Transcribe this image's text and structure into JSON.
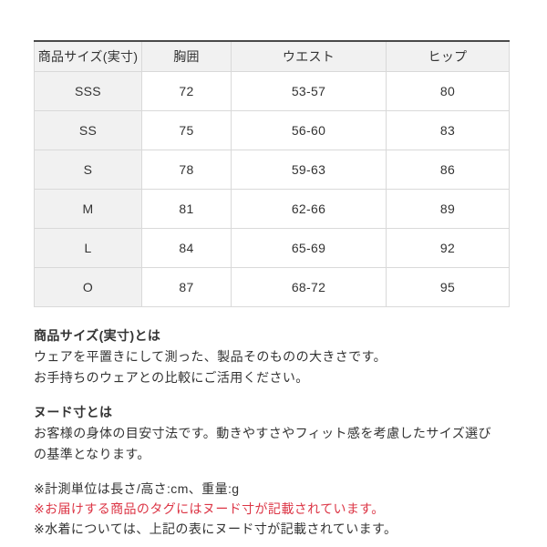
{
  "table": {
    "columns": [
      "商品サイズ(実寸)",
      "胸囲",
      "ウエスト",
      "ヒップ"
    ],
    "rows": [
      {
        "size": "SSS",
        "chest": "72",
        "waist": "53-57",
        "hip": "80"
      },
      {
        "size": "SS",
        "chest": "75",
        "waist": "56-60",
        "hip": "83"
      },
      {
        "size": "S",
        "chest": "78",
        "waist": "59-63",
        "hip": "86"
      },
      {
        "size": "M",
        "chest": "81",
        "waist": "62-66",
        "hip": "89"
      },
      {
        "size": "L",
        "chest": "84",
        "waist": "65-69",
        "hip": "92"
      },
      {
        "size": "O",
        "chest": "87",
        "waist": "68-72",
        "hip": "95"
      }
    ]
  },
  "sections": [
    {
      "heading": "商品サイズ(実寸)とは",
      "lines": [
        "ウェアを平置きにして測った、製品そのものの大きさです。",
        "お手持ちのウェアとの比較にご活用ください。"
      ]
    },
    {
      "heading": "ヌード寸とは",
      "lines": [
        "お客様の身体の目安寸法です。動きやすさやフィット感を考慮したサイズ選び",
        "の基準となります。"
      ]
    }
  ],
  "notes": [
    {
      "text": "※計測単位は長さ/高さ:cm、重量:g",
      "emphasis": "default"
    },
    {
      "text": "※お届けする商品のタグにはヌード寸が記載されています。",
      "emphasis": "red"
    },
    {
      "text": "※水着については、上記の表にヌード寸が記載されています。",
      "emphasis": "default"
    }
  ],
  "colors": {
    "text": "#333333",
    "table_border": "#d9d9d9",
    "table_top_border": "#4a4a4a",
    "shaded_cell_bg": "#f1f1f1",
    "note_red": "#dc3545",
    "background": "#ffffff"
  }
}
